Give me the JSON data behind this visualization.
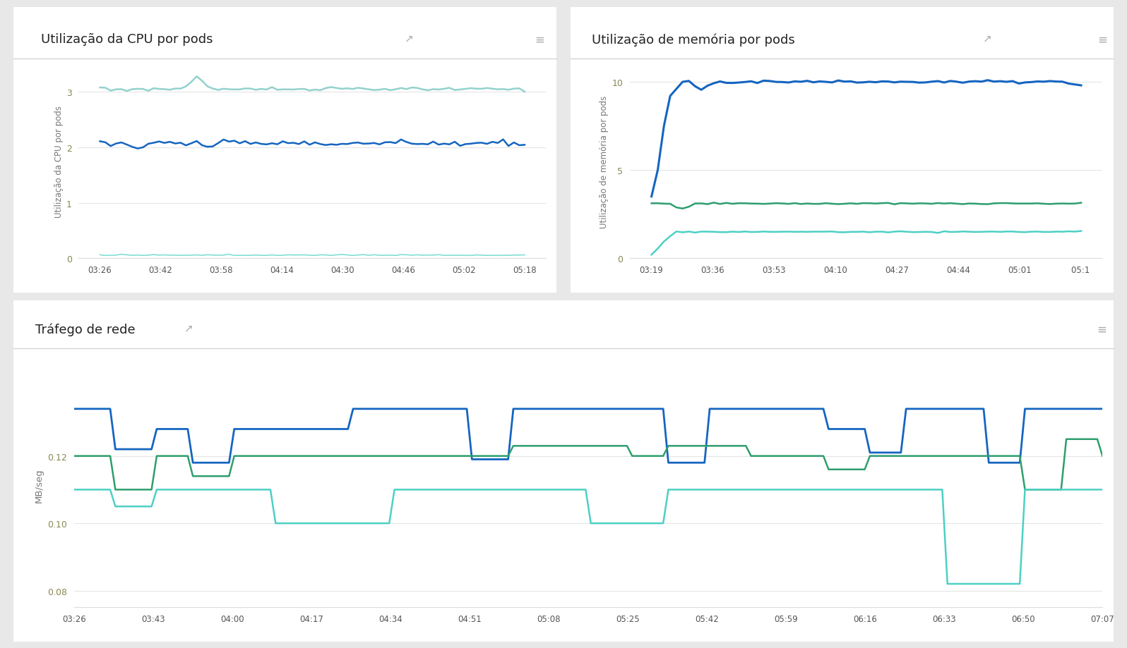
{
  "bg_color": "#e8e8e8",
  "panel_bg": "#ffffff",
  "cpu_title": "Utilização da CPU por pods",
  "mem_title": "Utilização de memória por pods",
  "net_title": "Tráfego de rede",
  "cpu_ylabel": "Utilização da CPU por pods",
  "mem_ylabel": "Utilização de memória por pods",
  "net_ylabel": "MB/seg",
  "cpu_xticks": [
    "03:26",
    "03:42",
    "03:58",
    "04:14",
    "04:30",
    "04:46",
    "05:02",
    "05:18"
  ],
  "mem_xticks": [
    "03:19",
    "03:36",
    "03:53",
    "04:10",
    "04:27",
    "04:44",
    "05:01",
    "05:1 "
  ],
  "net_xticks": [
    "03:26",
    "03:43",
    "04:00",
    "04:17",
    "04:34",
    "04:51",
    "05:08",
    "05:25",
    "05:42",
    "05:59",
    "06:16",
    "06:33",
    "06:50",
    "07:07"
  ],
  "cpu_blue_color": "#1565c0",
  "cpu_green_color": "#80cbc4",
  "cpu_teal_color": "#4dd0c4",
  "mem_blue_color": "#1565c0",
  "mem_green_color": "#2e9e6e",
  "mem_teal_color": "#4dd0c4",
  "net_blue_color": "#1565c0",
  "net_green_color": "#2e9e6e",
  "net_teal_color": "#4dd0c4",
  "cpu_ylim": [
    0,
    3.5
  ],
  "cpu_yticks": [
    0,
    1,
    2,
    3
  ],
  "mem_ylim": [
    0,
    11
  ],
  "mem_yticks": [
    0,
    5,
    10
  ],
  "net_ylim": [
    0.075,
    0.148
  ],
  "net_yticks": [
    0.08,
    0.1,
    0.12
  ],
  "tick_color": "#888855",
  "label_color": "#777777",
  "grid_color": "#e5e5e5",
  "spine_color": "#dddddd",
  "title_color": "#222222"
}
